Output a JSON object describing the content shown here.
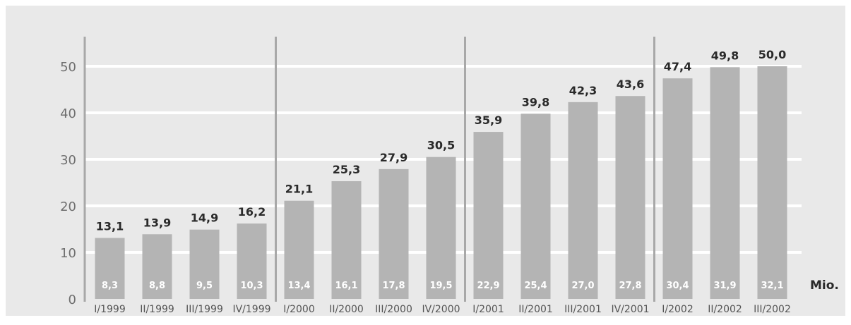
{
  "chart_data": {
    "type": "bar",
    "title": "",
    "xlabel": "",
    "ylabel": "",
    "unit_label": "Mio.",
    "ylim": [
      0,
      57
    ],
    "yticks": [
      0,
      10,
      20,
      30,
      40,
      50
    ],
    "grid": true,
    "categories": [
      "I/1999",
      "II/1999",
      "III/1999",
      "IV/1999",
      "I/2000",
      "II/2000",
      "III/2000",
      "IV/2000",
      "I/2001",
      "II/2001",
      "III/2001",
      "IV/2001",
      "I/2002",
      "II/2002",
      "III/2002"
    ],
    "series": [
      {
        "values": [
          13.1,
          13.9,
          14.9,
          16.2,
          21.1,
          25.3,
          27.9,
          30.5,
          35.9,
          39.8,
          42.3,
          43.6,
          47.4,
          49.8,
          50.0
        ],
        "labels": [
          "13,1",
          "13,9",
          "14,9",
          "16,2",
          "21,1",
          "25,3",
          "27,9",
          "30,5",
          "35,9",
          "39,8",
          "42,3",
          "43,6",
          "47,4",
          "49,8",
          "50,0"
        ]
      },
      {
        "values": [
          8.3,
          8.8,
          9.5,
          10.3,
          13.4,
          16.1,
          17.8,
          19.5,
          22.9,
          25.4,
          27.0,
          27.8,
          30.4,
          31.9,
          32.1
        ],
        "labels": [
          "8,3",
          "8,8",
          "9,5",
          "10,3",
          "13,4",
          "16,1",
          "17,8",
          "19,5",
          "22,9",
          "25,4",
          "27,0",
          "27,8",
          "30,4",
          "31,9",
          "32,1"
        ]
      }
    ],
    "year_separators_after": [
      "IV/1999",
      "IV/2000",
      "IV/2001"
    ],
    "colors": {
      "background": "#e9e9e9",
      "bar": "#b4b4b4",
      "grid": "#ffffff",
      "separator": "#a8a8a8"
    }
  }
}
